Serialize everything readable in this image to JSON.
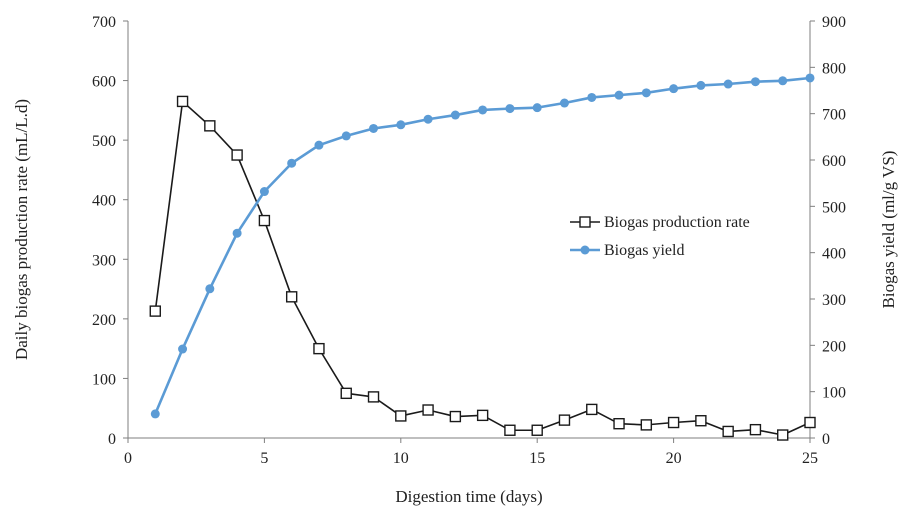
{
  "chart_data": {
    "type": "line",
    "title": "",
    "xlabel": "Digestion time (days)",
    "ylabel_left": "Daily biogas production rate (mL/L.d)",
    "ylabel_right": "Biogas yield (ml/g VS)",
    "xlim": [
      0,
      25
    ],
    "xticks": [
      0,
      5,
      10,
      15,
      20,
      25
    ],
    "ylim_left": [
      0,
      700
    ],
    "yticks_left": [
      0,
      100,
      200,
      300,
      400,
      500,
      600,
      700
    ],
    "ylim_right": [
      0,
      900
    ],
    "yticks_right": [
      0,
      100,
      200,
      300,
      400,
      500,
      600,
      700,
      800,
      900
    ],
    "grid": false,
    "legend_position": "center-right",
    "series": [
      {
        "name": "Biogas production rate",
        "axis": "left",
        "color": "#1a1a1a",
        "marker": "open-square",
        "x": [
          1,
          2,
          3,
          4,
          5,
          6,
          7,
          8,
          9,
          10,
          11,
          12,
          13,
          14,
          15,
          16,
          17,
          18,
          19,
          20,
          21,
          22,
          23,
          24,
          25
        ],
        "y": [
          213,
          565,
          524,
          475,
          365,
          237,
          150,
          75,
          69,
          37,
          47,
          36,
          38,
          13,
          13,
          30,
          48,
          24,
          22,
          26,
          29,
          11,
          14,
          5,
          26
        ]
      },
      {
        "name": "Biogas yield",
        "axis": "right",
        "color": "#5b9bd5",
        "marker": "filled-circle",
        "x": [
          1,
          2,
          3,
          4,
          5,
          6,
          7,
          8,
          9,
          10,
          11,
          12,
          13,
          14,
          15,
          16,
          17,
          18,
          19,
          20,
          21,
          22,
          23,
          24,
          25
        ],
        "y": [
          52,
          192,
          322,
          442,
          532,
          593,
          632,
          652,
          668,
          676,
          688,
          697,
          708,
          711,
          713,
          723,
          735,
          740,
          745,
          754,
          761,
          764,
          769,
          771,
          777
        ]
      }
    ]
  }
}
